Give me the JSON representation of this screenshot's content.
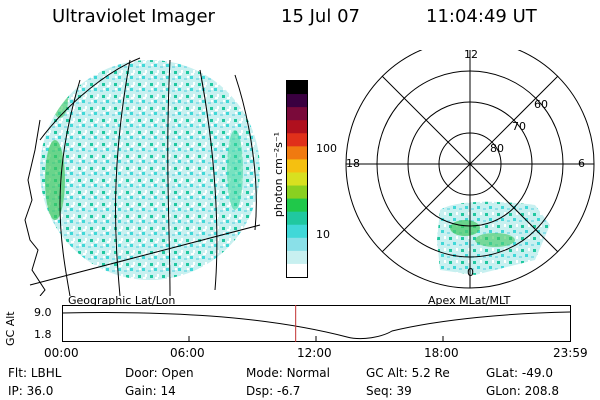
{
  "header": {
    "instrument": "Ultraviolet Imager",
    "date": "15 Jul 07",
    "time": "11:04:49 UT"
  },
  "panels": {
    "left_label": "Geographic Lat/Lon",
    "right_label": "Apex MLat/MLT"
  },
  "colorbar": {
    "unit": "photon cm⁻²s⁻¹",
    "ticks": [
      "100",
      "10"
    ],
    "colors": [
      "#000000",
      "#3a0040",
      "#7a0a3a",
      "#b0101e",
      "#e0301a",
      "#f07a10",
      "#f5c010",
      "#d8e020",
      "#8ad020",
      "#20c84a",
      "#20c8a0",
      "#40d8d8",
      "#8ae0e8",
      "#c8f0f0",
      "#ffffff"
    ]
  },
  "polar": {
    "mlt_labels": {
      "top": "12",
      "left": "18",
      "right": "6",
      "bottom": "0"
    },
    "lat_labels": [
      "60",
      "70",
      "80"
    ]
  },
  "altitude_track": {
    "ylabel": "GC Alt",
    "yticks": [
      "9.0",
      "1.8"
    ],
    "xticks": [
      "00:00",
      "06:00",
      "12:00",
      "18:00",
      "23:59"
    ],
    "current_time_fraction": 0.46
  },
  "info": {
    "flt": {
      "label": "Flt:",
      "value": "LBHL"
    },
    "ip": {
      "label": "IP:",
      "value": "36.0"
    },
    "door": {
      "label": "Door:",
      "value": "Open"
    },
    "gain": {
      "label": "Gain:",
      "value": "14"
    },
    "mode": {
      "label": "Mode:",
      "value": "Normal"
    },
    "dsp": {
      "label": "Dsp:",
      "value": "-6.7"
    },
    "gc_alt": {
      "label": "GC Alt:",
      "value": "5.2 Re"
    },
    "seq": {
      "label": "Seq:",
      "value": "39"
    },
    "glat": {
      "label": "GLat:",
      "value": "-49.0"
    },
    "glon": {
      "label": "GLon:",
      "value": "208.8"
    }
  }
}
